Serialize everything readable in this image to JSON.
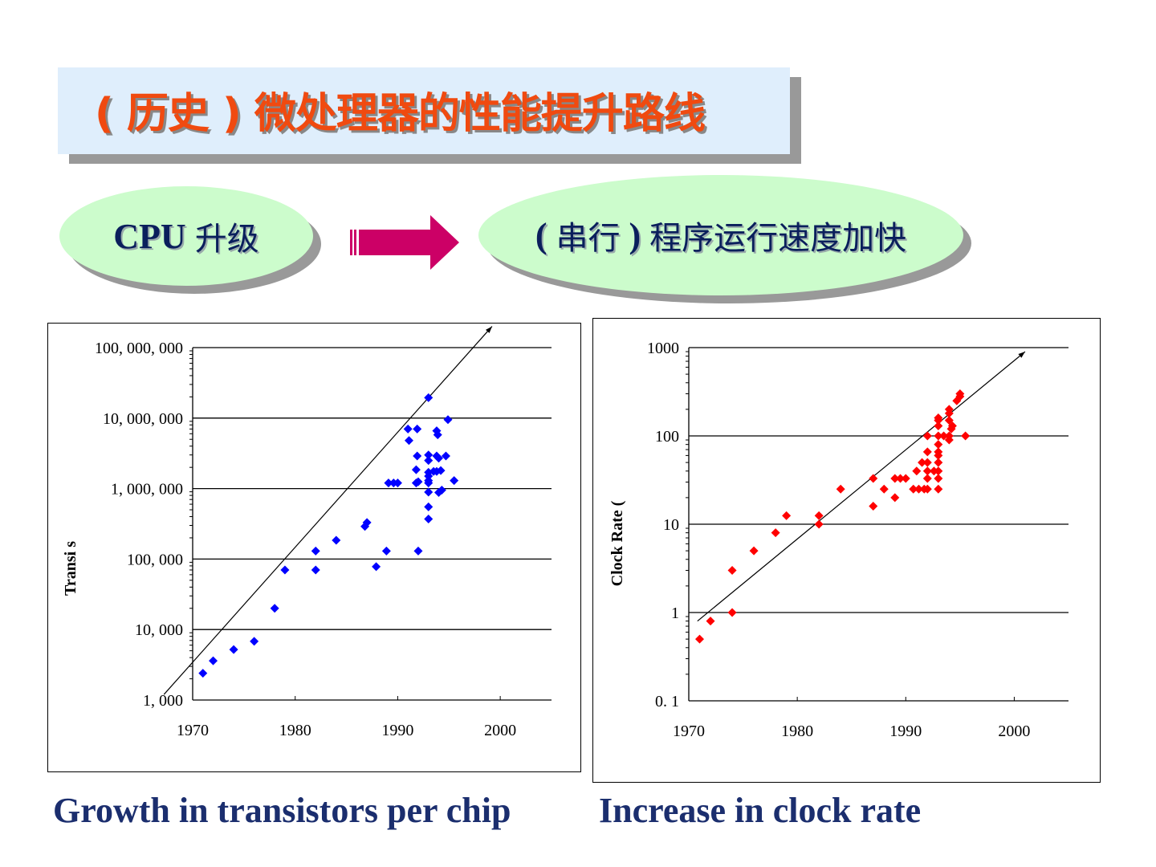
{
  "title": "( 历史 ) 微处理器的性能提升路线",
  "flow": {
    "left": "CPU",
    "left_cn": "升级",
    "right_p1": "(",
    "right_cn1": "串行",
    "right_p2": ")",
    "right_cn2": "程序运行速度加快"
  },
  "colors": {
    "title": "#f04a10",
    "transistor_points": "#0000ff",
    "clock_points": "#ff0000",
    "arrow": "#cc0066"
  },
  "captions": {
    "left": "Growth in transistors per chip",
    "right": "Increase in clock rate"
  },
  "chart_data": [
    {
      "type": "scatter",
      "ylabel": "Transi s",
      "yscale": "log",
      "ylim": [
        1000,
        100000000
      ],
      "xlim": [
        1970,
        2005
      ],
      "xticks": [
        1970,
        1980,
        1990,
        2000
      ],
      "xtick_labels": [
        "1970",
        "1980",
        "1990",
        "2000"
      ],
      "yticks": [
        1000,
        10000,
        100000,
        1000000,
        10000000,
        100000000
      ],
      "ytick_labels": [
        "1, 000",
        "10, 000",
        "100, 000",
        "1, 000, 000",
        "10, 000, 000",
        "100, 000, 000"
      ],
      "color": "#0000ff",
      "trend": [
        [
          1967.2,
          1200
        ],
        [
          1999.2,
          200000000
        ]
      ],
      "points": [
        [
          1971,
          2400
        ],
        [
          1972,
          3600
        ],
        [
          1974,
          5200
        ],
        [
          1976,
          6800
        ],
        [
          1978,
          20000
        ],
        [
          1979,
          70000
        ],
        [
          1982,
          70000
        ],
        [
          1982,
          130000
        ],
        [
          1984,
          185000
        ],
        [
          1986.8,
          290000
        ],
        [
          1987,
          330000
        ],
        [
          1987.9,
          78000
        ],
        [
          1988.9,
          130000
        ],
        [
          1989.1,
          1200000
        ],
        [
          1989.6,
          1200000
        ],
        [
          1990,
          1200000
        ],
        [
          1991,
          7000000
        ],
        [
          1991.1,
          4800000
        ],
        [
          1991.8,
          1850000
        ],
        [
          1991.9,
          2900000
        ],
        [
          1991.8,
          1200000
        ],
        [
          1992,
          1250000
        ],
        [
          1991.9,
          7000000
        ],
        [
          1992,
          130000
        ],
        [
          1993,
          19500000
        ],
        [
          1993,
          3000000
        ],
        [
          1993,
          2500000
        ],
        [
          1993,
          1700000
        ],
        [
          1993,
          1500000
        ],
        [
          1993,
          1300000
        ],
        [
          1993,
          1200000
        ],
        [
          1993,
          890000
        ],
        [
          1993,
          550000
        ],
        [
          1993,
          370000
        ],
        [
          1993.5,
          1750000
        ],
        [
          1993.8,
          6600000
        ],
        [
          1993.9,
          5800000
        ],
        [
          1993.8,
          2900000
        ],
        [
          1994,
          2700000
        ],
        [
          1993.8,
          1750000
        ],
        [
          1994.2,
          1800000
        ],
        [
          1994,
          880000
        ],
        [
          1994.3,
          950000
        ],
        [
          1994.7,
          2900000
        ],
        [
          1994.9,
          9500000
        ],
        [
          1995.5,
          1300000
        ]
      ]
    },
    {
      "type": "scatter",
      "ylabel": "Clock Rate (",
      "yscale": "log",
      "ylim": [
        0.1,
        1000
      ],
      "xlim": [
        1970,
        2005
      ],
      "xticks": [
        1970,
        1980,
        1990,
        2000
      ],
      "xtick_labels": [
        "1970",
        "1980",
        "1990",
        "2000"
      ],
      "yticks": [
        0.1,
        1,
        10,
        100,
        1000
      ],
      "ytick_labels": [
        "0. 1",
        "1",
        "10",
        "100",
        "1000"
      ],
      "color": "#ff0000",
      "trend": [
        [
          1970.8,
          0.8
        ],
        [
          2001,
          900
        ]
      ],
      "points": [
        [
          1971,
          0.5
        ],
        [
          1972,
          0.8
        ],
        [
          1974,
          1
        ],
        [
          1974,
          3
        ],
        [
          1976,
          5
        ],
        [
          1978,
          8
        ],
        [
          1979,
          12.5
        ],
        [
          1982,
          12.5
        ],
        [
          1982,
          10
        ],
        [
          1984,
          25
        ],
        [
          1987,
          33
        ],
        [
          1987,
          16
        ],
        [
          1988,
          25
        ],
        [
          1989,
          20
        ],
        [
          1989,
          33
        ],
        [
          1989.5,
          33
        ],
        [
          1990,
          33
        ],
        [
          1990.7,
          25
        ],
        [
          1991.2,
          25
        ],
        [
          1991.7,
          25
        ],
        [
          1991,
          40
        ],
        [
          1991.5,
          50
        ],
        [
          1992,
          100
        ],
        [
          1992,
          66
        ],
        [
          1992,
          50
        ],
        [
          1992,
          40
        ],
        [
          1992,
          33
        ],
        [
          1992,
          25
        ],
        [
          1992.6,
          40
        ],
        [
          1993,
          150
        ],
        [
          1993,
          130
        ],
        [
          1993,
          100
        ],
        [
          1993,
          80
        ],
        [
          1993,
          66
        ],
        [
          1993,
          60
        ],
        [
          1993,
          50
        ],
        [
          1993,
          40
        ],
        [
          1993,
          33
        ],
        [
          1993,
          25
        ],
        [
          1993,
          160
        ],
        [
          1993.5,
          100
        ],
        [
          1994,
          200
        ],
        [
          1994,
          180
        ],
        [
          1994,
          150
        ],
        [
          1994.2,
          120
        ],
        [
          1994.3,
          130
        ],
        [
          1994,
          90
        ],
        [
          1994,
          100
        ],
        [
          1994.7,
          250
        ],
        [
          1995,
          280
        ],
        [
          1995,
          300
        ],
        [
          1995.5,
          100
        ]
      ]
    }
  ]
}
